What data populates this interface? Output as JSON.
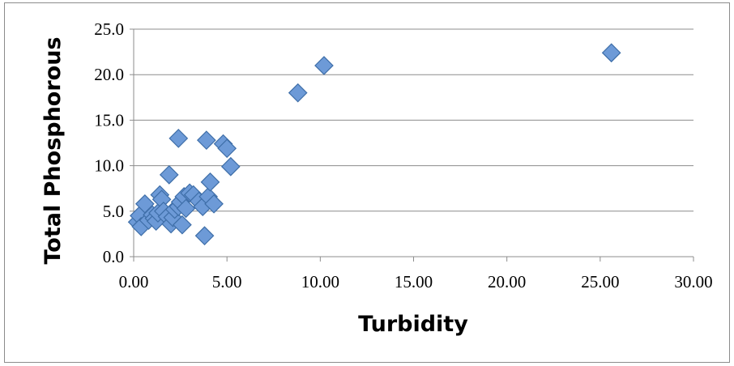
{
  "chart_data": {
    "type": "scatter",
    "title": "",
    "xlabel": "Turbidity",
    "ylabel": "Total Phosphorous",
    "xlim": [
      0,
      30
    ],
    "ylim": [
      0,
      25
    ],
    "x_ticks": [
      "0.00",
      "5.00",
      "10.00",
      "15.00",
      "20.00",
      "25.00",
      "30.00"
    ],
    "y_ticks": [
      "0.0",
      "5.0",
      "10.0",
      "15.0",
      "20.0",
      "25.0"
    ],
    "grid": "horizontal",
    "legend": "none",
    "marker": "diamond",
    "color": "#6d9ad7",
    "series": [
      {
        "points": [
          [
            0.2,
            3.8
          ],
          [
            0.3,
            4.5
          ],
          [
            0.4,
            3.3
          ],
          [
            0.6,
            5.8
          ],
          [
            0.8,
            4.0
          ],
          [
            1.0,
            4.6
          ],
          [
            1.1,
            4.2
          ],
          [
            1.2,
            3.9
          ],
          [
            1.3,
            4.8
          ],
          [
            1.4,
            6.8
          ],
          [
            1.5,
            6.3
          ],
          [
            1.6,
            5.0
          ],
          [
            1.8,
            4.4
          ],
          [
            1.9,
            9.0
          ],
          [
            2.0,
            3.6
          ],
          [
            2.1,
            4.3
          ],
          [
            2.2,
            5.2
          ],
          [
            2.4,
            13.0
          ],
          [
            2.4,
            5.5
          ],
          [
            2.5,
            6.0
          ],
          [
            2.6,
            3.5
          ],
          [
            2.7,
            6.6
          ],
          [
            2.8,
            5.3
          ],
          [
            3.0,
            7.0
          ],
          [
            3.2,
            6.8
          ],
          [
            3.5,
            6.1
          ],
          [
            3.7,
            5.5
          ],
          [
            3.8,
            2.3
          ],
          [
            3.9,
            12.8
          ],
          [
            4.0,
            6.6
          ],
          [
            4.1,
            8.2
          ],
          [
            4.3,
            5.8
          ],
          [
            4.8,
            12.4
          ],
          [
            5.0,
            11.9
          ],
          [
            5.2,
            9.9
          ],
          [
            8.8,
            18.0
          ],
          [
            10.2,
            21.0
          ],
          [
            25.6,
            22.4
          ]
        ]
      }
    ]
  }
}
